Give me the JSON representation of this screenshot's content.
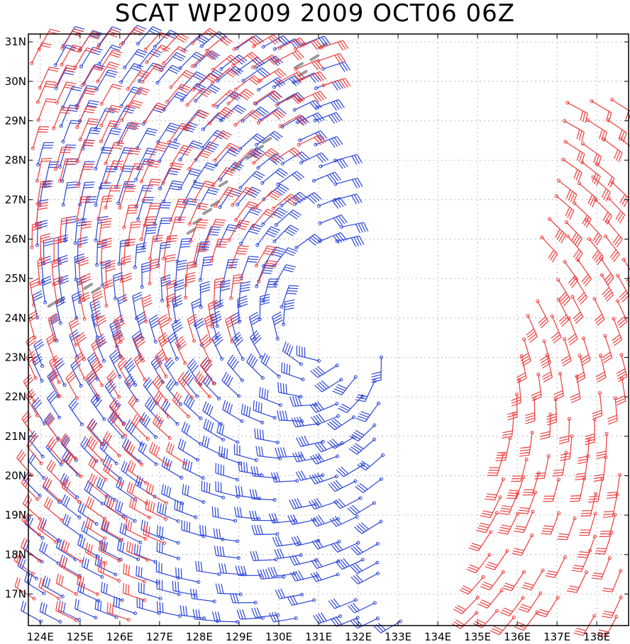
{
  "title": "SCAT WP2009 2009 OCT06 06Z",
  "map": {
    "lon_range": [
      123.7,
      138.8
    ],
    "lat_range": [
      16.2,
      31.2
    ],
    "lon_ticks": [
      "124E",
      "125E",
      "126E",
      "127E",
      "128E",
      "129E",
      "130E",
      "131E",
      "132E",
      "133E",
      "134E",
      "135E",
      "136E",
      "137E",
      "138E"
    ],
    "lat_ticks": [
      "17N",
      "18N",
      "19N",
      "20N",
      "21N",
      "22N",
      "23N",
      "24N",
      "25N",
      "26N",
      "27N",
      "28N",
      "29N",
      "30N",
      "31N"
    ],
    "grid": true,
    "colors": {
      "pass_a": "#2b45d6",
      "pass_b": "#ee3b3b",
      "land": "#9a9a9a",
      "frame": "#000000",
      "grid": "#aaaaaa"
    },
    "wind_barbs": {
      "type": "scatterometer-wind-barbs",
      "pass_a_color": "blue",
      "pass_b_color": "red"
    }
  }
}
